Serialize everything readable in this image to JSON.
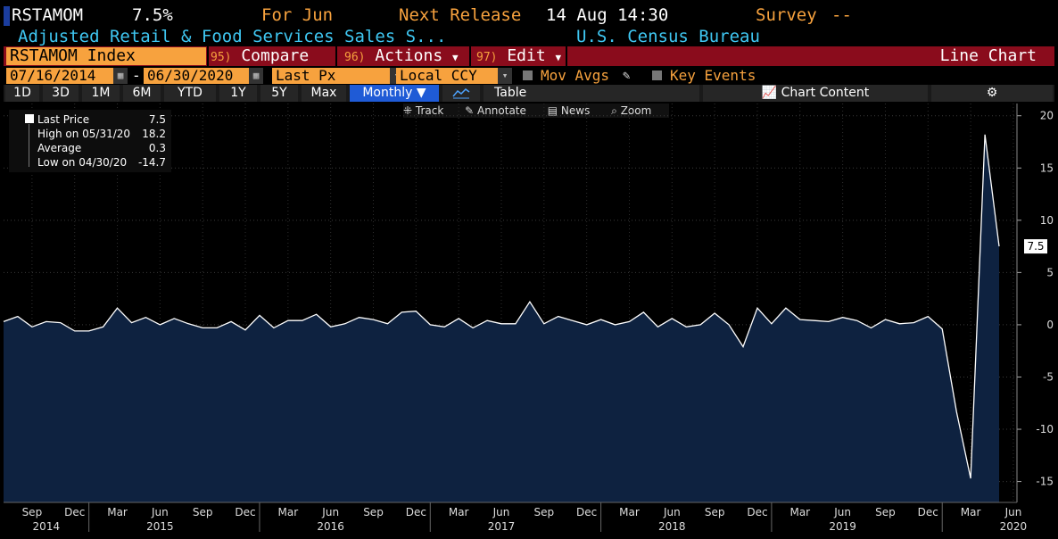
{
  "header": {
    "ticker": "RSTAMOM",
    "value": "7.5%",
    "for_label": "For Jun",
    "next_release_label": "Next Release",
    "next_release_value": "14 Aug 14:30",
    "survey_label": "Survey",
    "survey_value": "--",
    "description": "Adjusted Retail & Food Services Sales S...",
    "source": "U.S. Census Bureau"
  },
  "toolbar": {
    "index_name": "RSTAMOM Index",
    "compare_num": "95)",
    "compare_label": "Compare",
    "actions_num": "96)",
    "actions_label": "Actions",
    "edit_num": "97)",
    "edit_label": "Edit",
    "chart_type_label": "Line Chart"
  },
  "settings": {
    "start_date": "07/16/2014",
    "end_date": "06/30/2020",
    "date_sep": "-",
    "price_field": "Last Px",
    "currency": "Local CCY",
    "mov_avgs_label": "Mov Avgs",
    "key_events_label": "Key Events"
  },
  "ranges": {
    "buttons": [
      "1D",
      "3D",
      "1M",
      "6M",
      "YTD",
      "1Y",
      "5Y",
      "Max"
    ],
    "frequency": "Monthly",
    "table_label": "Table",
    "chart_content_label": "Chart Content"
  },
  "chart_tools": {
    "track": "Track",
    "annotate": "Annotate",
    "news": "News",
    "zoom": "Zoom"
  },
  "legend": {
    "last_price_label": "Last Price",
    "last_price_value": "7.5",
    "high_label": "High on 05/31/20",
    "high_value": "18.2",
    "average_label": "Average",
    "average_value": "0.3",
    "low_label": "Low on 04/30/20",
    "low_value": "-14.7"
  },
  "colors": {
    "amber": "#f7a23e",
    "cyan": "#3fc7f2",
    "toolbar_red": "#8a0c1c",
    "fill": "#0e2240",
    "line": "#ffffff"
  },
  "chart_data": {
    "type": "area",
    "ylim": [
      -17,
      21
    ],
    "yticks": [
      -15,
      -10,
      -5,
      0,
      5,
      10,
      15,
      20
    ],
    "last_value_label": "7.5",
    "x_month_labels": [
      "Sep",
      "Dec",
      "Mar",
      "Jun",
      "Sep",
      "Dec",
      "Mar",
      "Jun",
      "Sep",
      "Dec",
      "Mar",
      "Jun",
      "Sep",
      "Dec",
      "Mar",
      "Jun",
      "Sep",
      "Dec",
      "Mar",
      "Jun",
      "Sep",
      "Dec",
      "Mar",
      "Jun"
    ],
    "x_year_labels": [
      "2014",
      "2015",
      "2016",
      "2017",
      "2018",
      "2019",
      "2020"
    ],
    "x_start": "2014-07",
    "values": [
      0.3,
      0.8,
      -0.2,
      0.3,
      0.2,
      -0.6,
      -0.6,
      -0.2,
      1.6,
      0.2,
      0.7,
      0.0,
      0.6,
      0.1,
      -0.3,
      -0.3,
      0.3,
      -0.5,
      0.9,
      -0.3,
      0.4,
      0.4,
      1.0,
      -0.2,
      0.1,
      0.7,
      0.5,
      0.1,
      1.2,
      1.3,
      0.0,
      -0.2,
      0.6,
      -0.3,
      0.4,
      0.1,
      0.1,
      2.2,
      0.1,
      0.8,
      0.4,
      0.0,
      0.5,
      0.0,
      0.3,
      1.2,
      -0.2,
      0.6,
      -0.2,
      0.0,
      1.1,
      0.0,
      -2.1,
      1.6,
      0.1,
      1.6,
      0.5,
      0.4,
      0.3,
      0.7,
      0.4,
      -0.3,
      0.5,
      0.1,
      0.2,
      0.8,
      -0.4,
      -8.3,
      -14.7,
      18.2,
      7.5
    ]
  }
}
